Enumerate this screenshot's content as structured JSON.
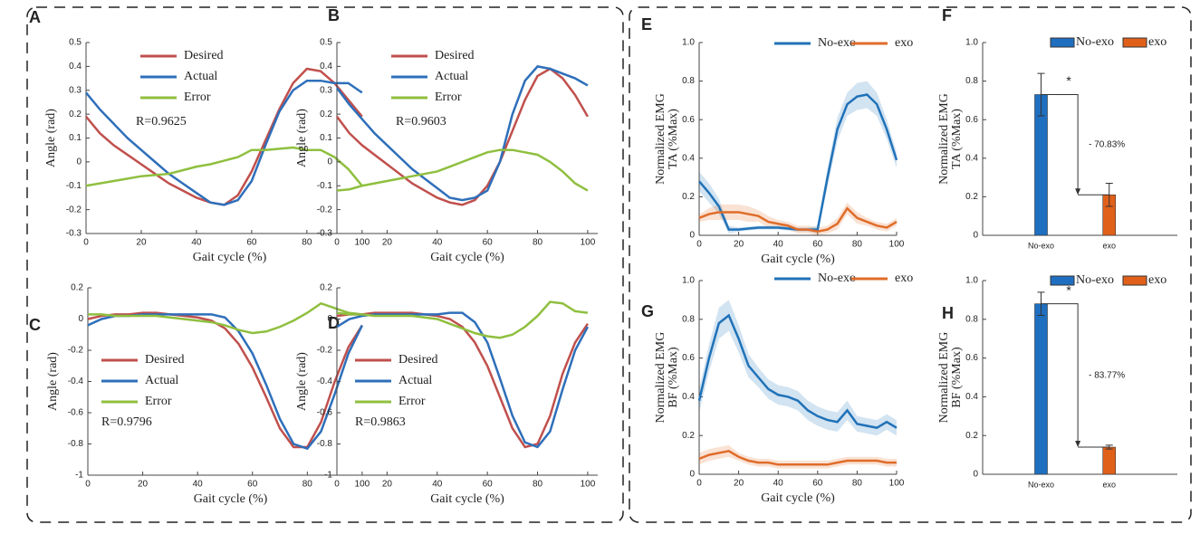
{
  "chart_data": [
    {
      "type": "line",
      "label": "A",
      "xlabel": "Gait cycle (%)",
      "ylabel": [
        "Angle (rad)"
      ],
      "note": "R=0.9625",
      "xlim": [
        0,
        104
      ],
      "ylim": [
        -0.3,
        0.5
      ],
      "xticks": [
        0,
        20,
        40,
        60,
        80,
        100
      ],
      "yticks": [
        -0.3,
        -0.2,
        -0.1,
        0,
        0.1,
        0.2,
        0.3,
        0.4,
        0.5
      ],
      "x": [
        0,
        5,
        10,
        15,
        20,
        25,
        30,
        35,
        40,
        45,
        50,
        55,
        60,
        65,
        70,
        75,
        80,
        85,
        90,
        95,
        100
      ],
      "series": [
        {
          "name": "Desired",
          "color": "#c0504d",
          "values": [
            0.19,
            0.12,
            0.07,
            0.03,
            -0.01,
            -0.05,
            -0.09,
            -0.12,
            -0.15,
            -0.17,
            -0.18,
            -0.14,
            -0.04,
            0.09,
            0.22,
            0.33,
            0.39,
            0.38,
            0.33,
            0.26,
            0.19
          ]
        },
        {
          "name": "Actual",
          "color": "#2e6fba",
          "values": [
            0.29,
            0.22,
            0.16,
            0.1,
            0.05,
            0.0,
            -0.05,
            -0.09,
            -0.13,
            -0.17,
            -0.18,
            -0.16,
            -0.08,
            0.07,
            0.21,
            0.3,
            0.34,
            0.34,
            0.33,
            0.33,
            0.29
          ]
        },
        {
          "name": "Error",
          "color": "#8fbf3f",
          "values": [
            -0.1,
            -0.09,
            -0.08,
            -0.07,
            -0.06,
            -0.055,
            -0.05,
            -0.035,
            -0.02,
            -0.01,
            0.005,
            0.02,
            0.05,
            0.05,
            0.055,
            0.06,
            0.05,
            0.05,
            0.02,
            -0.03,
            -0.1
          ]
        }
      ]
    },
    {
      "type": "line",
      "label": "B",
      "xlabel": "Gait cycle (%)",
      "ylabel": [
        "Angle (rad)"
      ],
      "note": "R=0.9603",
      "xlim": [
        0,
        104
      ],
      "ylim": [
        -0.3,
        0.5
      ],
      "xticks": [
        0,
        20,
        40,
        60,
        80,
        100
      ],
      "yticks": [
        -0.3,
        -0.2,
        -0.1,
        0,
        0.1,
        0.2,
        0.3,
        0.4,
        0.5
      ],
      "x": [
        0,
        5,
        10,
        15,
        20,
        25,
        30,
        35,
        40,
        45,
        50,
        55,
        60,
        65,
        70,
        75,
        80,
        85,
        90,
        95,
        100
      ],
      "series": [
        {
          "name": "Desired",
          "color": "#c0504d",
          "values": [
            0.19,
            0.12,
            0.07,
            0.03,
            -0.01,
            -0.05,
            -0.09,
            -0.12,
            -0.15,
            -0.17,
            -0.18,
            -0.16,
            -0.1,
            0.0,
            0.13,
            0.26,
            0.36,
            0.39,
            0.35,
            0.28,
            0.19
          ]
        },
        {
          "name": "Actual",
          "color": "#2e6fba",
          "values": [
            0.31,
            0.24,
            0.18,
            0.12,
            0.07,
            0.02,
            -0.03,
            -0.07,
            -0.11,
            -0.15,
            -0.16,
            -0.15,
            -0.12,
            0.0,
            0.2,
            0.34,
            0.4,
            0.39,
            0.37,
            0.35,
            0.32
          ]
        },
        {
          "name": "Error",
          "color": "#8fbf3f",
          "values": [
            -0.12,
            -0.115,
            -0.1,
            -0.09,
            -0.08,
            -0.07,
            -0.06,
            -0.05,
            -0.04,
            -0.02,
            0.0,
            0.02,
            0.04,
            0.05,
            0.05,
            0.04,
            0.03,
            0.0,
            -0.04,
            -0.09,
            -0.12
          ]
        }
      ]
    },
    {
      "type": "line",
      "label": "C",
      "xlabel": "Gait cycle (%)",
      "ylabel": [
        "Angle (rad)"
      ],
      "note": "R=0.9796",
      "xlim": [
        0,
        104
      ],
      "ylim": [
        -1,
        0.2
      ],
      "xticks": [
        0,
        20,
        40,
        60,
        80,
        100
      ],
      "yticks": [
        -1,
        -0.8,
        -0.6,
        -0.4,
        -0.2,
        0,
        0.2
      ],
      "x": [
        0,
        5,
        10,
        15,
        20,
        25,
        30,
        35,
        40,
        45,
        50,
        55,
        60,
        65,
        70,
        75,
        80,
        85,
        90,
        95,
        100
      ],
      "series": [
        {
          "name": "Desired",
          "color": "#c0504d",
          "values": [
            0.0,
            0.02,
            0.03,
            0.03,
            0.04,
            0.04,
            0.03,
            0.02,
            0.01,
            -0.01,
            -0.06,
            -0.16,
            -0.31,
            -0.5,
            -0.7,
            -0.82,
            -0.82,
            -0.66,
            -0.4,
            -0.18,
            -0.04
          ]
        },
        {
          "name": "Actual",
          "color": "#2e6fba",
          "values": [
            -0.04,
            0.0,
            0.02,
            0.02,
            0.03,
            0.03,
            0.03,
            0.03,
            0.03,
            0.03,
            0.01,
            -0.08,
            -0.22,
            -0.42,
            -0.64,
            -0.8,
            -0.83,
            -0.72,
            -0.48,
            -0.22,
            -0.04
          ]
        },
        {
          "name": "Error",
          "color": "#8fbf3f",
          "values": [
            0.03,
            0.03,
            0.02,
            0.02,
            0.02,
            0.02,
            0.01,
            0.0,
            -0.01,
            -0.02,
            -0.04,
            -0.07,
            -0.09,
            -0.08,
            -0.05,
            -0.01,
            0.04,
            0.1,
            0.07,
            0.04,
            0.03
          ]
        }
      ]
    },
    {
      "type": "line",
      "label": "D",
      "xlabel": "Gait cycle (%)",
      "ylabel": [
        "Angle (rad)"
      ],
      "note": "R=0.9863",
      "xlim": [
        0,
        104
      ],
      "ylim": [
        -1,
        0.2
      ],
      "xticks": [
        0,
        20,
        40,
        60,
        80,
        100
      ],
      "yticks": [
        -1,
        -0.8,
        -0.6,
        -0.4,
        -0.2,
        0,
        0.2
      ],
      "x": [
        0,
        5,
        10,
        15,
        20,
        25,
        30,
        35,
        40,
        45,
        50,
        55,
        60,
        65,
        70,
        75,
        80,
        85,
        90,
        95,
        100
      ],
      "series": [
        {
          "name": "Desired",
          "color": "#c0504d",
          "values": [
            0.02,
            0.03,
            0.03,
            0.04,
            0.04,
            0.04,
            0.04,
            0.03,
            0.02,
            0.0,
            -0.05,
            -0.15,
            -0.3,
            -0.5,
            -0.7,
            -0.82,
            -0.8,
            -0.62,
            -0.35,
            -0.15,
            -0.03
          ]
        },
        {
          "name": "Actual",
          "color": "#2e6fba",
          "values": [
            -0.05,
            0.0,
            0.02,
            0.03,
            0.03,
            0.03,
            0.03,
            0.03,
            0.03,
            0.04,
            0.04,
            -0.02,
            -0.15,
            -0.38,
            -0.62,
            -0.79,
            -0.82,
            -0.72,
            -0.45,
            -0.2,
            -0.05
          ]
        },
        {
          "name": "Error",
          "color": "#8fbf3f",
          "values": [
            0.04,
            0.03,
            0.03,
            0.02,
            0.02,
            0.02,
            0.02,
            0.01,
            0.0,
            -0.03,
            -0.06,
            -0.09,
            -0.11,
            -0.12,
            -0.1,
            -0.05,
            0.02,
            0.11,
            0.1,
            0.05,
            0.04
          ]
        }
      ]
    },
    {
      "type": "line",
      "label": "E",
      "xlabel": "Gait cycle (%)",
      "ylabel": [
        "Normalized EMG",
        "TA (%Max)"
      ],
      "xlim": [
        0,
        100
      ],
      "ylim": [
        0,
        1
      ],
      "xticks": [
        0,
        20,
        40,
        60,
        80,
        100
      ],
      "yticks": [
        0,
        0.2,
        0.4,
        0.6,
        0.8,
        {
          "value": 1,
          "label": "1.0"
        }
      ],
      "x": [
        0,
        5,
        10,
        15,
        20,
        25,
        30,
        35,
        40,
        45,
        50,
        55,
        60,
        65,
        70,
        75,
        80,
        85,
        90,
        95,
        100
      ],
      "series": [
        {
          "name": "No-exo",
          "color": "#2072b8",
          "values": [
            0.28,
            0.22,
            0.15,
            0.03,
            0.03,
            0.035,
            0.04,
            0.04,
            0.04,
            0.035,
            0.03,
            0.03,
            0.03,
            0.3,
            0.55,
            0.68,
            0.72,
            0.73,
            0.68,
            0.55,
            0.39
          ],
          "errors": [
            0.05,
            0.05,
            0.04,
            0.02,
            0.01,
            0.01,
            0.01,
            0.01,
            0.01,
            0.01,
            0.01,
            0.01,
            0.02,
            0.05,
            0.06,
            0.06,
            0.07,
            0.07,
            0.06,
            0.05,
            0.04
          ]
        },
        {
          "name": "exo",
          "color": "#e06c2a",
          "values": [
            0.09,
            0.11,
            0.12,
            0.12,
            0.12,
            0.11,
            0.1,
            0.07,
            0.06,
            0.05,
            0.03,
            0.03,
            0.02,
            0.03,
            0.06,
            0.14,
            0.09,
            0.07,
            0.05,
            0.04,
            0.07
          ],
          "errors": [
            0.02,
            0.03,
            0.04,
            0.04,
            0.04,
            0.04,
            0.03,
            0.03,
            0.02,
            0.02,
            0.02,
            0.02,
            0.02,
            0.02,
            0.03,
            0.03,
            0.03,
            0.02,
            0.02,
            0.02,
            0.02
          ]
        }
      ]
    },
    {
      "type": "bar",
      "label": "F",
      "ylabel": [
        "Normalized EMG",
        "TA (%Max)"
      ],
      "note": "- 70.83%",
      "star": "*",
      "ylim": [
        0,
        1
      ],
      "yticks": [
        0,
        0.2,
        0.4,
        0.6,
        0.8,
        {
          "value": 1,
          "label": "1.0"
        }
      ],
      "categories": [
        "No-exo",
        "exo"
      ],
      "values": [
        0.73,
        0.21
      ],
      "errors": [
        0.11,
        0.06
      ],
      "colors": [
        "#1f6fc0",
        "#e0601a"
      ]
    },
    {
      "type": "line",
      "label": "G",
      "xlabel": "Gait cycle (%)",
      "ylabel": [
        "Normalized EMG",
        "BF (%Max)"
      ],
      "xlim": [
        0,
        100
      ],
      "ylim": [
        0,
        1
      ],
      "xticks": [
        0,
        20,
        40,
        60,
        80,
        100
      ],
      "yticks": [
        0,
        0.2,
        0.4,
        0.6,
        0.8,
        {
          "value": 1,
          "label": "1.0"
        }
      ],
      "x": [
        0,
        5,
        10,
        15,
        20,
        25,
        30,
        35,
        40,
        45,
        50,
        55,
        60,
        65,
        70,
        75,
        80,
        85,
        90,
        95,
        100
      ],
      "series": [
        {
          "name": "No-exo",
          "color": "#2072b8",
          "values": [
            0.38,
            0.6,
            0.78,
            0.82,
            0.7,
            0.56,
            0.5,
            0.44,
            0.41,
            0.4,
            0.38,
            0.33,
            0.3,
            0.28,
            0.27,
            0.33,
            0.26,
            0.25,
            0.24,
            0.27,
            0.24
          ],
          "errors": [
            0.06,
            0.07,
            0.08,
            0.08,
            0.07,
            0.06,
            0.05,
            0.05,
            0.05,
            0.05,
            0.05,
            0.05,
            0.05,
            0.05,
            0.05,
            0.05,
            0.04,
            0.04,
            0.04,
            0.04,
            0.04
          ]
        },
        {
          "name": "exo",
          "color": "#e06c2a",
          "values": [
            0.08,
            0.1,
            0.11,
            0.12,
            0.09,
            0.07,
            0.06,
            0.06,
            0.05,
            0.05,
            0.05,
            0.05,
            0.05,
            0.05,
            0.06,
            0.07,
            0.07,
            0.07,
            0.07,
            0.06,
            0.06
          ],
          "errors": [
            0.03,
            0.03,
            0.03,
            0.03,
            0.02,
            0.02,
            0.02,
            0.02,
            0.02,
            0.02,
            0.02,
            0.02,
            0.02,
            0.02,
            0.02,
            0.02,
            0.02,
            0.02,
            0.02,
            0.02,
            0.02
          ]
        }
      ]
    },
    {
      "type": "bar",
      "label": "H",
      "ylabel": [
        "Normalized EMG",
        "BF (%Max)"
      ],
      "note": "- 83.77%",
      "star": "*",
      "ylim": [
        0,
        1
      ],
      "yticks": [
        0,
        0.2,
        0.4,
        0.6,
        0.8,
        {
          "value": 1,
          "label": "1.0"
        }
      ],
      "categories": [
        "No-exo",
        "exo"
      ],
      "values": [
        0.88,
        0.14
      ],
      "errors": [
        0.06,
        0.01
      ],
      "colors": [
        "#1f6fc0",
        "#e0601a"
      ]
    }
  ]
}
